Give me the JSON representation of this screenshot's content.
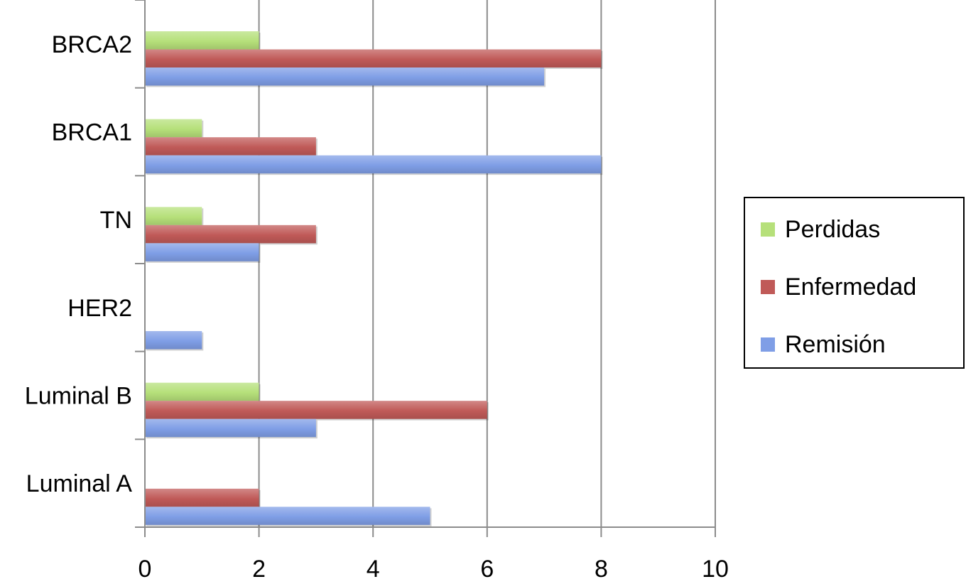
{
  "chart_data": {
    "type": "bar",
    "orientation": "horizontal",
    "categories": [
      "Luminal A",
      "Luminal B",
      "HER2",
      "TN",
      "BRCA1",
      "BRCA2"
    ],
    "series": [
      {
        "name": "Remisión",
        "values": [
          5,
          3,
          1,
          2,
          8,
          7
        ],
        "color": "#7f9ee6"
      },
      {
        "name": "Enfermedad",
        "values": [
          2,
          6,
          0,
          3,
          3,
          8
        ],
        "color": "#c05a58"
      },
      {
        "name": "Perdidas",
        "values": [
          0,
          2,
          0,
          1,
          1,
          2
        ],
        "color": "#b6e07a"
      }
    ],
    "xticks": [
      "0",
      "2",
      "4",
      "6",
      "8",
      "10"
    ],
    "xlim": [
      0,
      10
    ],
    "grid": "vertical",
    "legend_position": "right",
    "legend_order": [
      "Perdidas",
      "Enfermedad",
      "Remisión"
    ],
    "title": "",
    "xlabel": "",
    "ylabel": ""
  }
}
